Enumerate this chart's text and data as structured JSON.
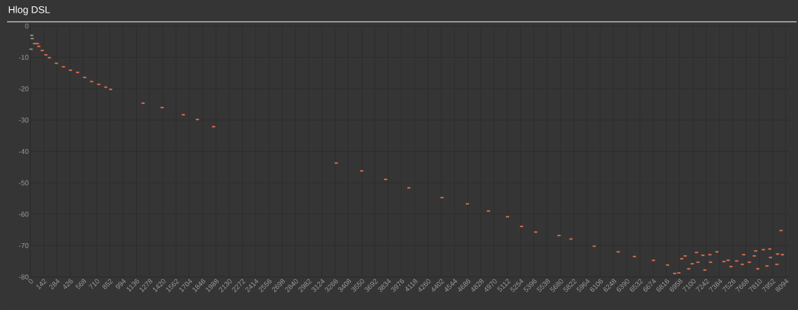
{
  "chart_data": {
    "type": "scatter",
    "title": "Hlog DSL",
    "xlim": [
      0,
      8135
    ],
    "ylim": [
      -80,
      0
    ],
    "xticks": [
      0,
      142,
      284,
      426,
      568,
      710,
      852,
      994,
      1136,
      1278,
      1420,
      1562,
      1704,
      1846,
      1988,
      2130,
      2272,
      2414,
      2556,
      2698,
      2840,
      2982,
      3124,
      3266,
      3408,
      3550,
      3692,
      3834,
      3976,
      4118,
      4260,
      4402,
      4544,
      4686,
      4828,
      4970,
      5112,
      5254,
      5396,
      5538,
      5680,
      5822,
      5964,
      6106,
      6248,
      6390,
      6532,
      6674,
      6816,
      6958,
      7100,
      7242,
      7384,
      7526,
      7668,
      7810,
      7952,
      8094
    ],
    "yticks": [
      -80,
      -70,
      -60,
      -50,
      -40,
      -30,
      -20,
      -10,
      0
    ],
    "grid": true,
    "marker": "square",
    "series": [
      {
        "color": "#7fa36b",
        "x": [
          8,
          15,
          20
        ],
        "values": [
          -7.4,
          -3,
          -4
        ]
      },
      {
        "color": "#e0714f",
        "x": [
          45,
          76,
          91,
          128,
          166,
          204,
          279,
          355,
          430,
          506,
          582,
          657,
          733,
          808,
          861,
          1208,
          1412,
          1639,
          1790,
          1964,
          3278,
          3550,
          3807,
          4056,
          4411,
          4683,
          4909,
          5113,
          5264,
          5415,
          5665,
          5793,
          6042,
          6299,
          6473,
          6677,
          6828,
          6904,
          6949,
          6979,
          7017,
          7054,
          7092,
          7138,
          7153,
          7206,
          7228,
          7281,
          7289,
          7357,
          7432,
          7477,
          7508,
          7568,
          7629,
          7644,
          7704,
          7757,
          7772,
          7795,
          7855,
          7893,
          7923,
          7931,
          7999,
          8006,
          8044,
          8059
        ],
        "values": [
          -5.6,
          -5.6,
          -6.5,
          -7.8,
          -9.2,
          -10.1,
          -11.9,
          -13,
          -14.1,
          -14.8,
          -16.4,
          -17.7,
          -18.6,
          -19.5,
          -20.2,
          -24.6,
          -26,
          -28.3,
          -29.8,
          -32.1,
          -43.7,
          -46.2,
          -48.9,
          -51.6,
          -54.7,
          -56.7,
          -59,
          -60.8,
          -63.9,
          -65.7,
          -66.8,
          -67.9,
          -70.2,
          -72,
          -73.5,
          -74.7,
          -76.2,
          -78.9,
          -78.7,
          -74.2,
          -73.3,
          -77.4,
          -75.8,
          -72.2,
          -75.3,
          -73.1,
          -77.8,
          -72.9,
          -75.3,
          -72,
          -75.1,
          -74.7,
          -76.7,
          -74.9,
          -76,
          -72.9,
          -75.3,
          -73.3,
          -71.7,
          -77.4,
          -71.3,
          -76.5,
          -71.1,
          -73.8,
          -76,
          -72.7,
          -65.2,
          -72.9
        ]
      }
    ]
  }
}
